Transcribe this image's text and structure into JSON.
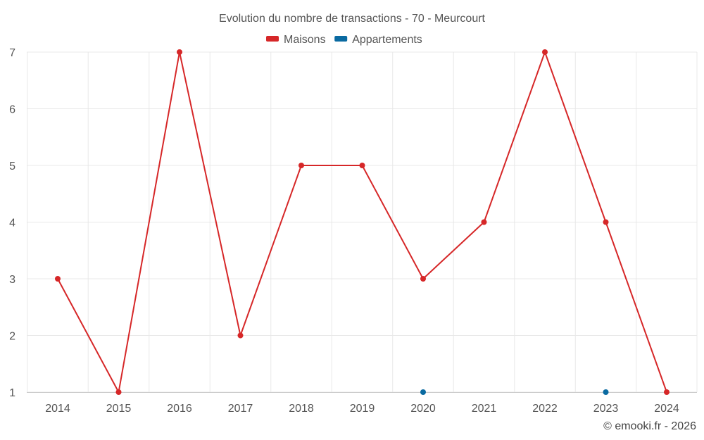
{
  "chart_data": {
    "type": "line",
    "title": "Evolution du nombre de transactions - 70 - Meurcourt",
    "xlabel": "",
    "ylabel": "",
    "categories": [
      "2014",
      "2015",
      "2016",
      "2017",
      "2018",
      "2019",
      "2020",
      "2021",
      "2022",
      "2023",
      "2024"
    ],
    "ylim": [
      1,
      7
    ],
    "yticks": [
      "1",
      "2",
      "3",
      "4",
      "5",
      "6",
      "7"
    ],
    "grid": true,
    "legend_position": "top-center",
    "series": [
      {
        "name": "Maisons",
        "color": "#d62728",
        "values": [
          3,
          1,
          7,
          2,
          5,
          5,
          3,
          4,
          7,
          4,
          1
        ]
      },
      {
        "name": "Appartements",
        "color": "#0a6aa1",
        "values": [
          null,
          null,
          null,
          null,
          null,
          null,
          1,
          null,
          null,
          1,
          null
        ]
      }
    ]
  },
  "credit": "© emooki.fr - 2026"
}
